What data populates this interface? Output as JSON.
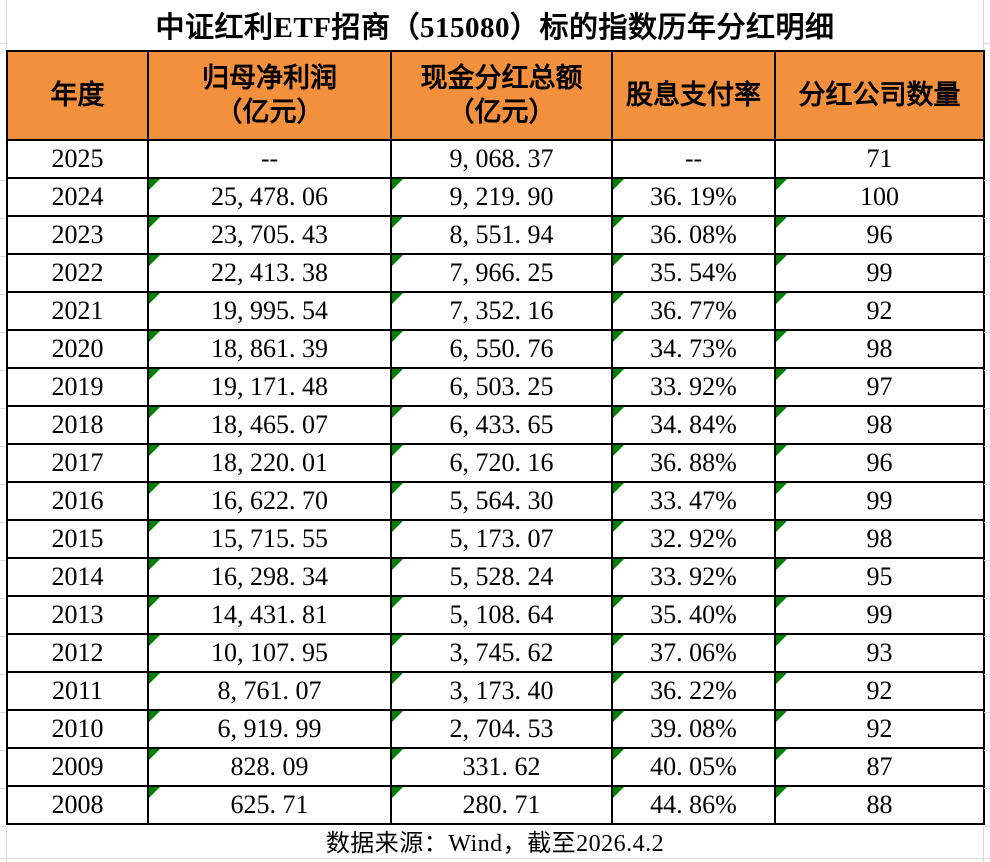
{
  "title": "中证红利ETF招商（515080）标的指数历年分红明细",
  "table": {
    "columns": [
      {
        "label": "年度",
        "sub": ""
      },
      {
        "label": "归母净利润",
        "sub": "（亿元）"
      },
      {
        "label": "现金分红总额",
        "sub": "（亿元）"
      },
      {
        "label": "股息支付率",
        "sub": ""
      },
      {
        "label": "分红公司数量",
        "sub": ""
      }
    ],
    "rows": [
      {
        "year": "2025",
        "net_profit": "--",
        "cash_dividend": "9, 068. 37",
        "payout_ratio": "--",
        "company_count": "71",
        "flagged": false
      },
      {
        "year": "2024",
        "net_profit": "25, 478. 06",
        "cash_dividend": "9, 219. 90",
        "payout_ratio": "36. 19%",
        "company_count": "100",
        "flagged": true
      },
      {
        "year": "2023",
        "net_profit": "23, 705. 43",
        "cash_dividend": "8, 551. 94",
        "payout_ratio": "36. 08%",
        "company_count": "96",
        "flagged": true
      },
      {
        "year": "2022",
        "net_profit": "22, 413. 38",
        "cash_dividend": "7, 966. 25",
        "payout_ratio": "35. 54%",
        "company_count": "99",
        "flagged": true
      },
      {
        "year": "2021",
        "net_profit": "19, 995. 54",
        "cash_dividend": "7, 352. 16",
        "payout_ratio": "36. 77%",
        "company_count": "92",
        "flagged": true
      },
      {
        "year": "2020",
        "net_profit": "18, 861. 39",
        "cash_dividend": "6, 550. 76",
        "payout_ratio": "34. 73%",
        "company_count": "98",
        "flagged": true
      },
      {
        "year": "2019",
        "net_profit": "19, 171. 48",
        "cash_dividend": "6, 503. 25",
        "payout_ratio": "33. 92%",
        "company_count": "97",
        "flagged": true
      },
      {
        "year": "2018",
        "net_profit": "18, 465. 07",
        "cash_dividend": "6, 433. 65",
        "payout_ratio": "34. 84%",
        "company_count": "98",
        "flagged": true
      },
      {
        "year": "2017",
        "net_profit": "18, 220. 01",
        "cash_dividend": "6, 720. 16",
        "payout_ratio": "36. 88%",
        "company_count": "96",
        "flagged": true
      },
      {
        "year": "2016",
        "net_profit": "16, 622. 70",
        "cash_dividend": "5, 564. 30",
        "payout_ratio": "33. 47%",
        "company_count": "99",
        "flagged": true
      },
      {
        "year": "2015",
        "net_profit": "15, 715. 55",
        "cash_dividend": "5, 173. 07",
        "payout_ratio": "32. 92%",
        "company_count": "98",
        "flagged": true
      },
      {
        "year": "2014",
        "net_profit": "16, 298. 34",
        "cash_dividend": "5, 528. 24",
        "payout_ratio": "33. 92%",
        "company_count": "95",
        "flagged": true
      },
      {
        "year": "2013",
        "net_profit": "14, 431. 81",
        "cash_dividend": "5, 108. 64",
        "payout_ratio": "35. 40%",
        "company_count": "99",
        "flagged": true
      },
      {
        "year": "2012",
        "net_profit": "10, 107. 95",
        "cash_dividend": "3, 745. 62",
        "payout_ratio": "37. 06%",
        "company_count": "93",
        "flagged": true
      },
      {
        "year": "2011",
        "net_profit": "8, 761. 07",
        "cash_dividend": "3, 173. 40",
        "payout_ratio": "36. 22%",
        "company_count": "92",
        "flagged": true
      },
      {
        "year": "2010",
        "net_profit": "6, 919. 99",
        "cash_dividend": "2, 704. 53",
        "payout_ratio": "39. 08%",
        "company_count": "92",
        "flagged": true
      },
      {
        "year": "2009",
        "net_profit": "828. 09",
        "cash_dividend": "331. 62",
        "payout_ratio": "40. 05%",
        "company_count": "87",
        "flagged": true
      },
      {
        "year": "2008",
        "net_profit": "625. 71",
        "cash_dividend": "280. 71",
        "payout_ratio": "44. 86%",
        "company_count": "88",
        "flagged": true
      }
    ]
  },
  "footer": "数据来源：Wind，截至2026.4.2",
  "colors": {
    "header_bg": "#F2903E",
    "flag_green": "#008000",
    "border_black": "#000000",
    "gridline_gray": "#D9D9D9"
  }
}
